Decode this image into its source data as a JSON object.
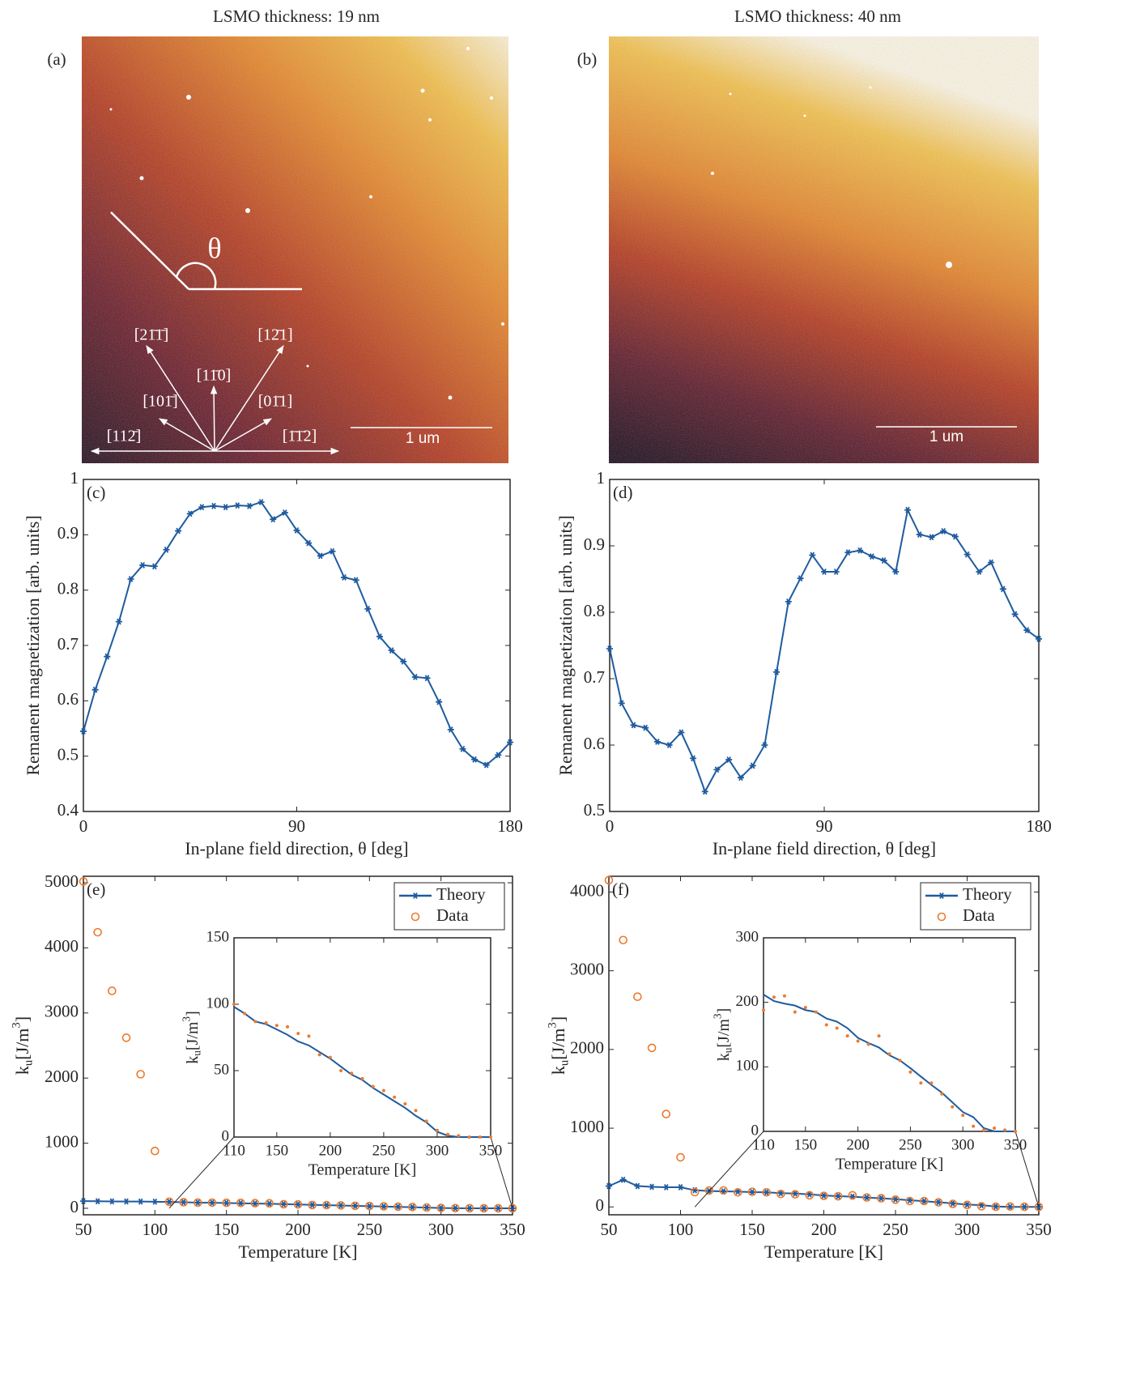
{
  "images": [
    {
      "title": "LSMO thickness: 19 nm",
      "label": "(a)",
      "scale_bar": "1 um",
      "angle_symbol": "θ",
      "directions": [
        "[21̄1̄]",
        "[12̄1]",
        "[11̄0]",
        "[101̄]",
        "[01̄1]",
        "[112̄]",
        "[1̄1̄2]"
      ]
    },
    {
      "title": "LSMO thickness: 40 nm",
      "label": "(b)",
      "scale_bar": "1 um"
    }
  ],
  "chart_data": [
    {
      "type": "line",
      "label": "(c)",
      "xlabel": "In-plane field direction, θ [deg]",
      "ylabel": "Remanent magnetization [arb. units]",
      "x": [
        0,
        5,
        10,
        15,
        20,
        25,
        30,
        35,
        40,
        45,
        50,
        55,
        60,
        65,
        70,
        75,
        80,
        85,
        90,
        95,
        100,
        105,
        110,
        115,
        120,
        125,
        130,
        135,
        140,
        145,
        150,
        155,
        160,
        165,
        170,
        175,
        180
      ],
      "series": [
        {
          "color": "#1f5b9e",
          "line": true,
          "marker": "*",
          "values": [
            0.545,
            0.62,
            0.68,
            0.743,
            0.82,
            0.845,
            0.843,
            0.873,
            0.907,
            0.938,
            0.95,
            0.952,
            0.95,
            0.953,
            0.952,
            0.959,
            0.928,
            0.94,
            0.908,
            0.885,
            0.862,
            0.87,
            0.823,
            0.818,
            0.766,
            0.716,
            0.691,
            0.671,
            0.643,
            0.641,
            0.598,
            0.548,
            0.513,
            0.494,
            0.484,
            0.502,
            0.525
          ]
        }
      ],
      "xlim": [
        0,
        180
      ],
      "ylim": [
        0.4,
        1
      ],
      "xticks": [
        0,
        90,
        180
      ],
      "yticks": [
        0.4,
        0.5,
        0.6,
        0.7,
        0.8,
        0.9,
        1
      ]
    },
    {
      "type": "line",
      "label": "(d)",
      "xlabel": "In-plane field direction, θ [deg]",
      "ylabel": "Remanent magnetization [arb. units]",
      "x": [
        0,
        5,
        10,
        15,
        20,
        25,
        30,
        35,
        40,
        45,
        50,
        55,
        60,
        65,
        70,
        75,
        80,
        85,
        90,
        95,
        100,
        105,
        110,
        115,
        120,
        125,
        130,
        135,
        140,
        145,
        150,
        155,
        160,
        165,
        170,
        175,
        180
      ],
      "series": [
        {
          "color": "#1f5b9e",
          "line": true,
          "marker": "*",
          "values": [
            0.745,
            0.663,
            0.63,
            0.626,
            0.605,
            0.6,
            0.619,
            0.58,
            0.53,
            0.563,
            0.578,
            0.551,
            0.569,
            0.6,
            0.71,
            0.816,
            0.851,
            0.886,
            0.861,
            0.861,
            0.89,
            0.893,
            0.884,
            0.878,
            0.861,
            0.954,
            0.917,
            0.913,
            0.922,
            0.914,
            0.887,
            0.861,
            0.875,
            0.835,
            0.797,
            0.773,
            0.76
          ]
        }
      ],
      "xlim": [
        0,
        180
      ],
      "ylim": [
        0.5,
        1
      ],
      "xticks": [
        0,
        90,
        180
      ],
      "yticks": [
        0.5,
        0.6,
        0.7,
        0.8,
        0.9,
        1
      ]
    },
    {
      "type": "line",
      "label": "(e)",
      "xlabel": "Temperature [K]",
      "ylabel": [
        "k",
        "u",
        "[J/m",
        "3",
        "]"
      ],
      "legend": "upper right",
      "x": [
        50,
        60,
        70,
        80,
        90,
        100,
        110,
        120,
        130,
        140,
        150,
        160,
        170,
        180,
        190,
        200,
        210,
        220,
        230,
        240,
        250,
        260,
        270,
        280,
        290,
        300,
        310,
        320,
        330,
        340,
        350
      ],
      "series": [
        {
          "name": "Theory",
          "color": "#1f5b9e",
          "line": true,
          "marker": "*",
          "values": [
            110,
            108,
            106,
            104,
            103,
            101,
            98,
            93,
            87,
            85,
            81,
            77,
            72,
            69,
            64,
            59,
            53,
            47,
            43,
            37,
            32,
            27,
            22,
            16,
            11,
            4,
            1,
            0,
            0,
            0,
            0
          ]
        },
        {
          "name": "Data",
          "color": "#ec7a2e",
          "line": false,
          "marker": "o",
          "values": [
            5020,
            4240,
            3340,
            2620,
            2060,
            880,
            100,
            93,
            87,
            86,
            84,
            83,
            78,
            76,
            62,
            60,
            50,
            48,
            44,
            38,
            35,
            30,
            25,
            20,
            12,
            5,
            2,
            1,
            0,
            0,
            0
          ]
        }
      ],
      "xlim": [
        50,
        350
      ],
      "ylim": [
        -100,
        5100
      ],
      "xticks": [
        50,
        100,
        150,
        200,
        250,
        300,
        350
      ],
      "yticks": [
        0,
        1000,
        2000,
        3000,
        4000,
        5000
      ],
      "inset": {
        "type": "line",
        "xlabel": "Temperature [K]",
        "ylabel": [
          "k",
          "u",
          "[J/m",
          "3",
          "]"
        ],
        "x": [
          110,
          120,
          130,
          140,
          150,
          160,
          170,
          180,
          190,
          200,
          210,
          220,
          230,
          240,
          250,
          260,
          270,
          280,
          290,
          300,
          310,
          320,
          330,
          340,
          350
        ],
        "series": [
          {
            "color": "#1f5b9e",
            "line": true,
            "marker": "none",
            "values": [
              98,
              93,
              87,
              85,
              81,
              77,
              72,
              69,
              64,
              59,
              53,
              47,
              43,
              37,
              32,
              27,
              22,
              16,
              11,
              4,
              1,
              0,
              0,
              0,
              0
            ]
          },
          {
            "color": "#ec7a2e",
            "line": false,
            "marker": "dot",
            "values": [
              100,
              93,
              87,
              86,
              84,
              83,
              78,
              76,
              62,
              60,
              50,
              48,
              44,
              38,
              35,
              30,
              25,
              20,
              12,
              5,
              2,
              1,
              0,
              0,
              0
            ]
          }
        ],
        "xlim": [
          110,
          350
        ],
        "ylim": [
          0,
          150
        ],
        "xticks": [
          110,
          150,
          200,
          250,
          300,
          350
        ],
        "yticks": [
          0,
          50,
          100,
          150
        ]
      }
    },
    {
      "type": "line",
      "label": "(f)",
      "xlabel": "Temperature [K]",
      "ylabel": [
        "k",
        "u",
        "[J/m",
        "3",
        "]"
      ],
      "legend": "upper right",
      "x": [
        50,
        60,
        70,
        80,
        90,
        100,
        110,
        120,
        130,
        140,
        150,
        160,
        170,
        180,
        190,
        200,
        210,
        220,
        230,
        240,
        250,
        260,
        270,
        280,
        290,
        300,
        310,
        320,
        330,
        340,
        350
      ],
      "series": [
        {
          "name": "Theory",
          "color": "#1f5b9e",
          "line": true,
          "marker": "*",
          "values": [
            265,
            345,
            265,
            255,
            250,
            250,
            212,
            202,
            198,
            195,
            188,
            185,
            175,
            170,
            160,
            145,
            137,
            130,
            118,
            110,
            98,
            85,
            72,
            60,
            45,
            30,
            22,
            5,
            0,
            0,
            0
          ]
        },
        {
          "name": "Data",
          "color": "#ec7a2e",
          "line": false,
          "marker": "o",
          "values": [
            4150,
            3390,
            2670,
            2020,
            1180,
            630,
            188,
            208,
            210,
            185,
            192,
            185,
            165,
            160,
            148,
            140,
            135,
            148,
            120,
            110,
            92,
            75,
            75,
            58,
            38,
            25,
            8,
            2,
            5,
            2,
            0
          ]
        }
      ],
      "xlim": [
        50,
        350
      ],
      "ylim": [
        -100,
        4200
      ],
      "xticks": [
        50,
        100,
        150,
        200,
        250,
        300,
        350
      ],
      "yticks": [
        0,
        1000,
        2000,
        3000,
        4000
      ],
      "inset": {
        "type": "line",
        "xlabel": "Temperature [K]",
        "ylabel": [
          "k",
          "u",
          "[J/m",
          "3",
          "]"
        ],
        "x": [
          110,
          120,
          130,
          140,
          150,
          160,
          170,
          180,
          190,
          200,
          210,
          220,
          230,
          240,
          250,
          260,
          270,
          280,
          290,
          300,
          310,
          320,
          330,
          340,
          350
        ],
        "series": [
          {
            "color": "#1f5b9e",
            "line": true,
            "marker": "none",
            "values": [
              212,
              202,
              198,
              195,
              188,
              185,
              175,
              170,
              160,
              145,
              137,
              130,
              118,
              110,
              98,
              85,
              72,
              60,
              45,
              30,
              22,
              5,
              0,
              0,
              0
            ]
          },
          {
            "color": "#ec7a2e",
            "line": false,
            "marker": "dot",
            "values": [
              188,
              208,
              210,
              185,
              192,
              185,
              165,
              160,
              148,
              140,
              135,
              148,
              120,
              110,
              92,
              75,
              75,
              58,
              38,
              25,
              8,
              2,
              5,
              2,
              0
            ]
          }
        ],
        "xlim": [
          110,
          350
        ],
        "ylim": [
          0,
          300
        ],
        "xticks": [
          110,
          150,
          200,
          250,
          300,
          350
        ],
        "yticks": [
          0,
          100,
          200,
          300
        ]
      }
    }
  ]
}
